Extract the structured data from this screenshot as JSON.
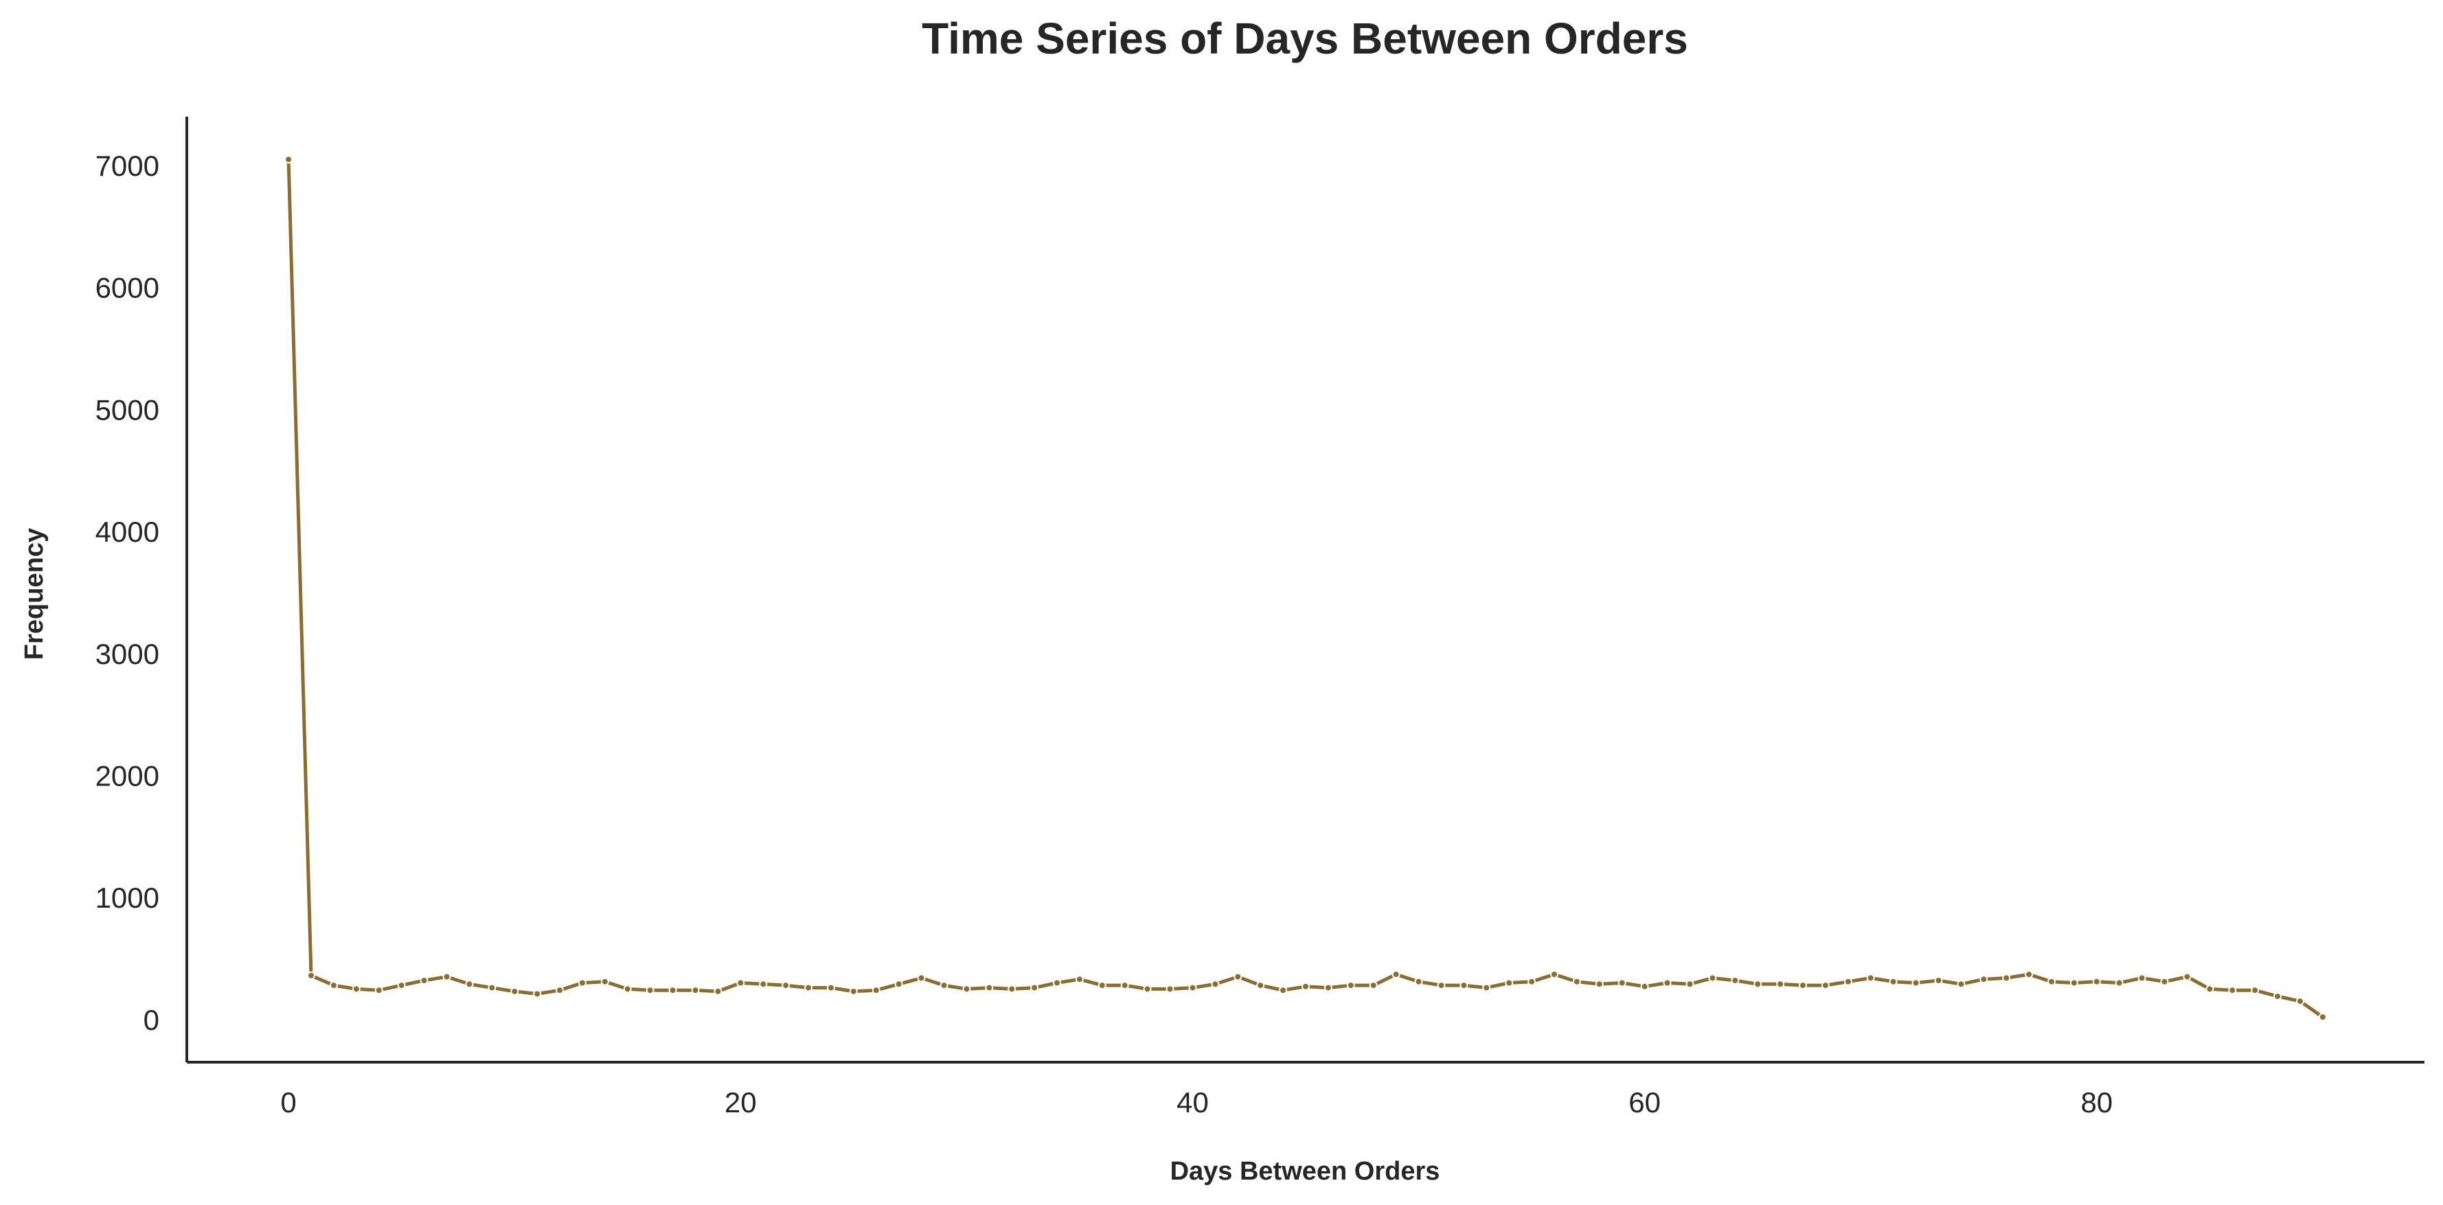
{
  "chart_data": {
    "type": "line",
    "title": "Time Series of Days Between Orders",
    "xlabel": "Days Between Orders",
    "ylabel": "Frequency",
    "xlim": [
      -4.5,
      94.5
    ],
    "ylim": [
      -350,
      7400
    ],
    "xticks": [
      0,
      20,
      40,
      60,
      80
    ],
    "yticks": [
      0,
      1000,
      2000,
      3000,
      4000,
      5000,
      6000,
      7000
    ],
    "grid": false,
    "legend": "none",
    "color": "#8c6d31",
    "marker_edge_color": "#ffffff",
    "series": [
      {
        "x": [
          0,
          1,
          2,
          3,
          4,
          5,
          6,
          7,
          8,
          9,
          10,
          11,
          12,
          13,
          14,
          15,
          16,
          17,
          18,
          19,
          20,
          21,
          22,
          23,
          24,
          25,
          26,
          27,
          28,
          29,
          30,
          31,
          32,
          33,
          34,
          35,
          36,
          37,
          38,
          39,
          40,
          41,
          42,
          43,
          44,
          45,
          46,
          47,
          48,
          49,
          50,
          51,
          52,
          53,
          54,
          55,
          56,
          57,
          58,
          59,
          60,
          61,
          62,
          63,
          64,
          65,
          66,
          67,
          68,
          69,
          70,
          71,
          72,
          73,
          74,
          75,
          76,
          77,
          78,
          79,
          80,
          81,
          82,
          83,
          84,
          85,
          86,
          87,
          88,
          89,
          90
        ],
        "values": [
          7050,
          360,
          280,
          250,
          240,
          280,
          320,
          350,
          290,
          260,
          230,
          210,
          240,
          300,
          310,
          250,
          240,
          240,
          240,
          230,
          300,
          290,
          280,
          260,
          260,
          230,
          240,
          290,
          340,
          280,
          250,
          260,
          250,
          260,
          300,
          330,
          280,
          280,
          250,
          250,
          260,
          290,
          350,
          280,
          240,
          270,
          260,
          280,
          280,
          370,
          310,
          280,
          280,
          260,
          300,
          310,
          370,
          310,
          290,
          300,
          270,
          300,
          290,
          340,
          320,
          290,
          290,
          280,
          280,
          310,
          340,
          310,
          300,
          320,
          290,
          330,
          340,
          370,
          310,
          300,
          310,
          300,
          340,
          310,
          350,
          250,
          240,
          240,
          190,
          150,
          20
        ]
      }
    ]
  }
}
